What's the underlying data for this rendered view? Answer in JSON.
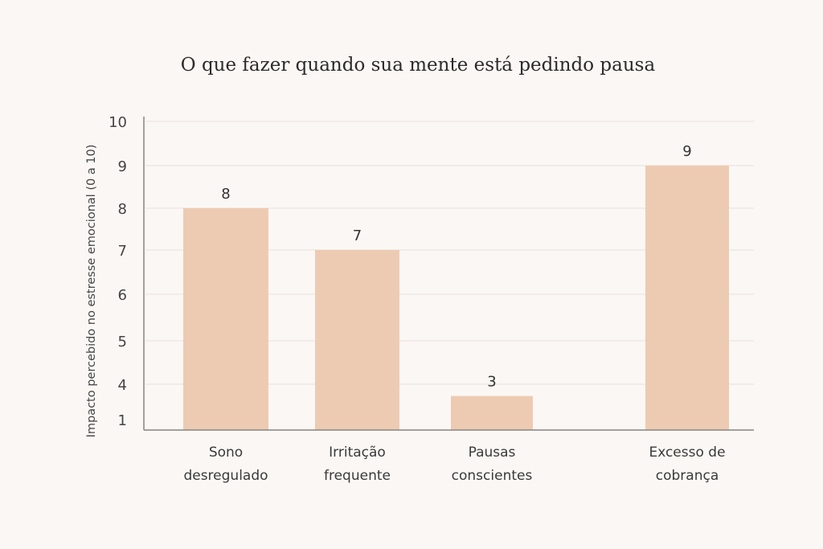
{
  "chart_data": {
    "type": "bar",
    "title": "O que fazer quando sua mente está pedindo pausa",
    "xlabel": "",
    "ylabel": "Impacto percebido no estresse emocional (0 a 10)",
    "categories": [
      [
        "Sono",
        "desregulado"
      ],
      [
        "Irritação",
        "frequente"
      ],
      [
        "Pausas",
        "conscientes"
      ],
      [
        "Excesso de",
        "cobrança"
      ]
    ],
    "values": [
      8,
      7,
      3,
      9
    ],
    "y_ticks": [
      10,
      9,
      8,
      7,
      6,
      5,
      4,
      1
    ],
    "grid": true,
    "colors": {
      "bar": "#edcbb2",
      "background": "#fbf7f4",
      "grid": "#e8e2dc",
      "axis": "#8a8480"
    }
  }
}
